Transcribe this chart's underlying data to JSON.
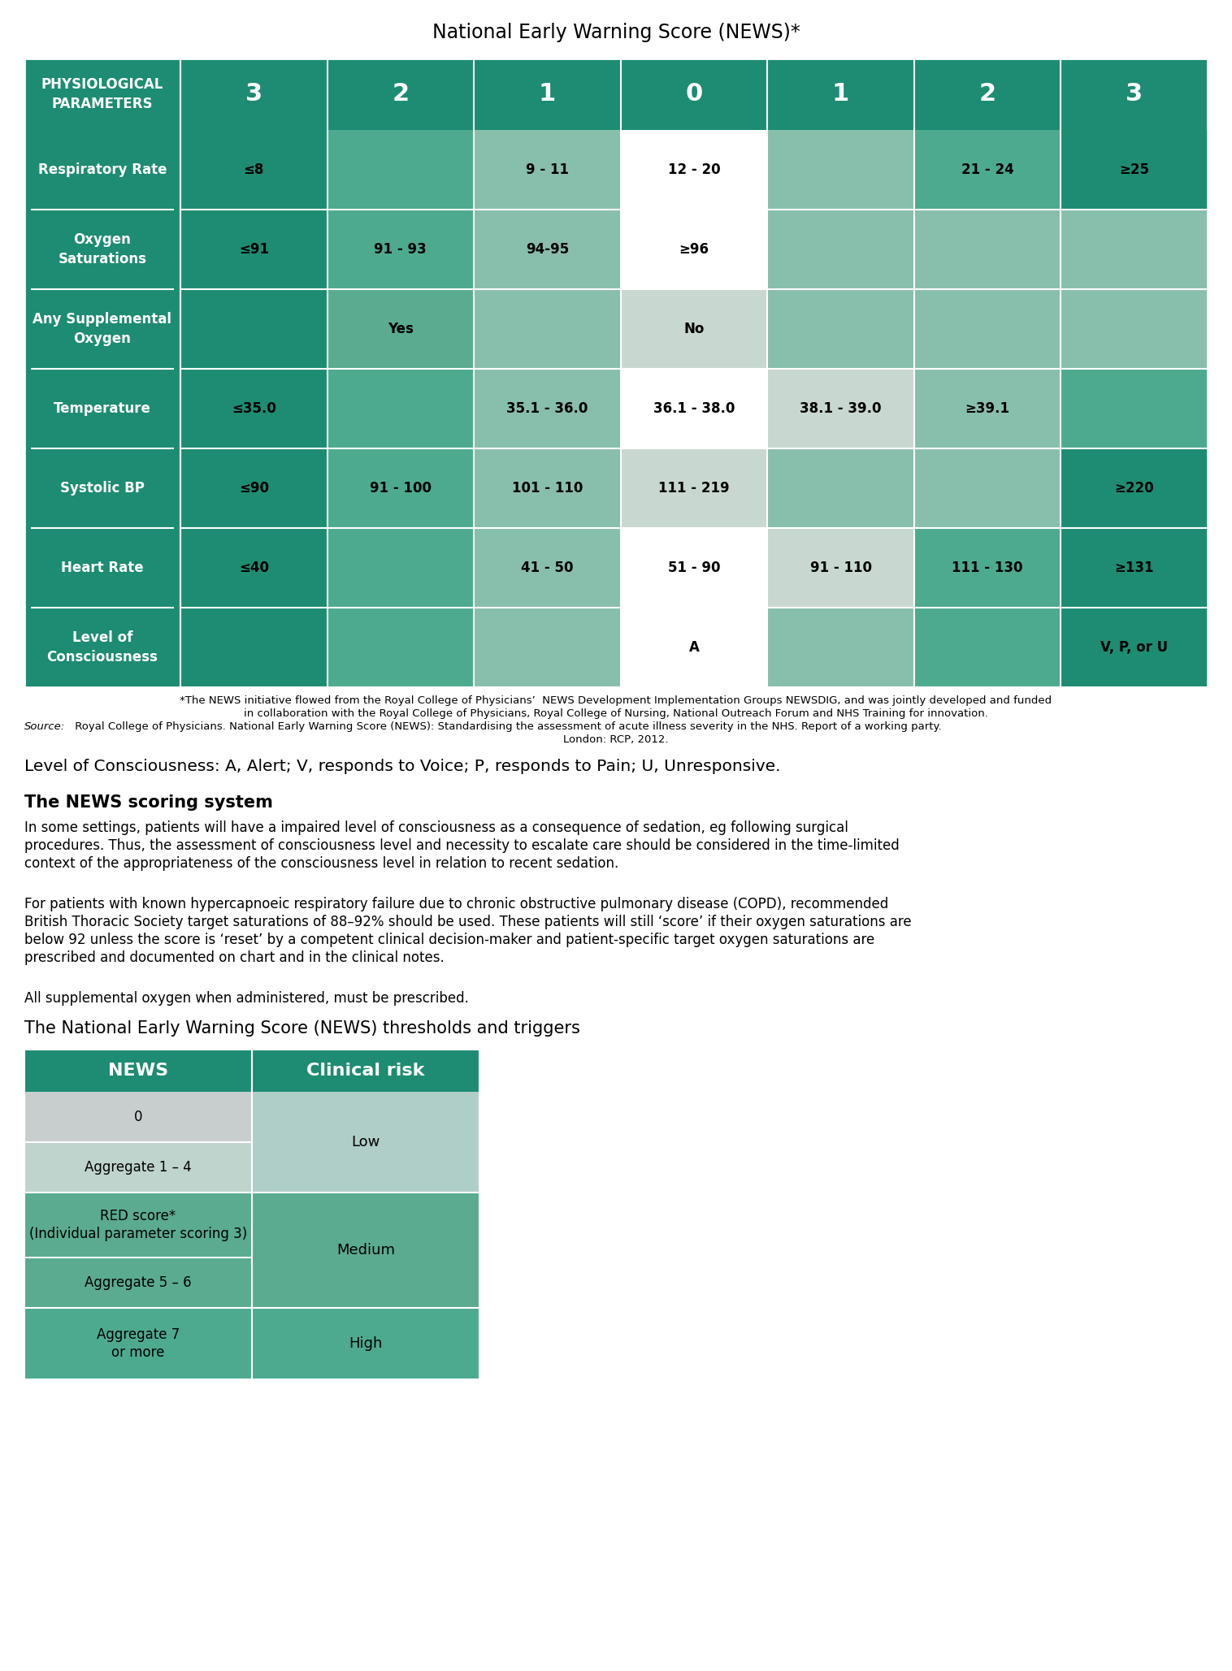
{
  "title": "National Early Warning Score (NEWS)*",
  "table_header_bg": "#1d8c72",
  "row_label_bg": "#1d8c72",
  "col_headers": [
    "PHYSIOLOGICAL\nPARAMETERS",
    "3",
    "2",
    "1",
    "0",
    "1",
    "2",
    "3"
  ],
  "rows": [
    {
      "label": "Respiratory Rate",
      "cells": [
        "≤8",
        "",
        "9 - 11",
        "12 - 20",
        "",
        "21 - 24",
        "≥25"
      ],
      "colors": [
        "score3",
        "score2",
        "score1",
        "score0_white",
        "score1",
        "score2",
        "score3"
      ]
    },
    {
      "label": "Oxygen\nSaturations",
      "cells": [
        "≤91",
        "91 - 93",
        "94-95",
        "≥96",
        "",
        "",
        ""
      ],
      "colors": [
        "score3",
        "score2",
        "score1",
        "score0_white",
        "score1_light",
        "score1_light",
        "score1_light"
      ]
    },
    {
      "label": "Any Supplemental\nOxygen",
      "cells": [
        "",
        "Yes",
        "",
        "No",
        "",
        "",
        ""
      ],
      "colors": [
        "score3",
        "score2_med",
        "score1",
        "score0_gray",
        "score1_light",
        "score1_light",
        "score1_light"
      ]
    },
    {
      "label": "Temperature",
      "cells": [
        "≤35.0",
        "",
        "35.1 - 36.0",
        "36.1 - 38.0",
        "38.1 - 39.0",
        "≥39.1",
        ""
      ],
      "colors": [
        "score3",
        "score2",
        "score1",
        "score0_white",
        "score0_gray",
        "score1",
        "score2"
      ]
    },
    {
      "label": "Systolic BP",
      "cells": [
        "≤90",
        "91 - 100",
        "101 - 110",
        "111 - 219",
        "",
        "",
        "≥220"
      ],
      "colors": [
        "score3",
        "score2",
        "score1",
        "score0_gray",
        "score1_light",
        "score1_light",
        "score3"
      ]
    },
    {
      "label": "Heart Rate",
      "cells": [
        "≤40",
        "",
        "41 - 50",
        "51 - 90",
        "91 - 110",
        "111 - 130",
        "≥131"
      ],
      "colors": [
        "score3",
        "score2",
        "score1",
        "score0_white",
        "score0_gray",
        "score2",
        "score3"
      ]
    },
    {
      "label": "Level of\nConsciousness",
      "cells": [
        "",
        "",
        "",
        "A",
        "",
        "",
        "V, P, or U"
      ],
      "colors": [
        "score3",
        "score2",
        "score1",
        "score0_white",
        "score1_light",
        "score2",
        "score3"
      ]
    }
  ],
  "color_map": {
    "score3": "#1d8c72",
    "score2": "#4daa8f",
    "score2_med": "#5aab90",
    "score1": "#88bfac",
    "score1_light": "#88bfac",
    "score0_white": "#ffffff",
    "score0_gray": "#c8d8d0",
    "score0_light": "#d8e8e0"
  },
  "footnote1": "*The NEWS initiative flowed from the Royal College of Physicians’  NEWS Development Implementation Groups NEWSDIG, and was jointly developed and funded",
  "footnote2": "in collaboration with the Royal College of Physicians, Royal College of Nursing, National Outreach Forum and NHS Training for innovation.",
  "footnote3_prefix": "Source:",
  "footnote3_body": " Royal College of Physicians. National Early Warning Score (NEWS): Standardising the assessment of acute illness severity in the NHS. Report of a working party.",
  "footnote4": "London: RCP, 2012.",
  "loc_text": "Level of Consciousness: A, Alert; V, responds to Voice; P, responds to Pain; U, Unresponsive.",
  "scoring_title": "The NEWS scoring system",
  "scoring_para1_lines": [
    "In some settings, patients will have a impaired level of consciousness as a consequence of sedation, eg following surgical",
    "procedures. Thus, the assessment of consciousness level and necessity to escalate care should be considered in the time-limited",
    "context of the appropriateness of the consciousness level in relation to recent sedation."
  ],
  "scoring_para2_lines": [
    "For patients with known hypercapnoeic respiratory failure due to chronic obstructive pulmonary disease (COPD), recommended",
    "British Thoracic Society target saturations of 88–92% should be used. These patients will still ‘score’ if their oxygen saturations are",
    "below 92 unless the score is ‘reset’ by a competent clinical decision-maker and patient-specific target oxygen saturations are",
    "prescribed and documented on chart and in the clinical notes."
  ],
  "scoring_para3": "All supplemental oxygen when administered, must be prescribed.",
  "table2_title": "The National Early Warning Score (NEWS) thresholds and triggers",
  "table2_header_bg": "#1d8c72",
  "table2_col1": "NEWS",
  "table2_col2": "Clinical risk",
  "table2_news_items": [
    "0",
    "Aggregate 1 – 4",
    "RED score*\n(Individual parameter scoring 3)",
    "Aggregate 5 – 6",
    "Aggregate 7\nor more"
  ],
  "table2_row_heights": [
    62,
    62,
    80,
    62,
    88
  ],
  "table2_news_colors": [
    "#c8cece",
    "#c0d4ce",
    "#5aab90",
    "#5aab90",
    "#4daa8f"
  ],
  "table2_risk_groups": [
    {
      "label": "Low",
      "rows": [
        0,
        1
      ],
      "bg": "#b0cec8"
    },
    {
      "label": "Medium",
      "rows": [
        2,
        3
      ],
      "bg": "#4daa8f"
    },
    {
      "label": "High",
      "rows": [
        4,
        4
      ],
      "bg": "#4daa8f"
    }
  ],
  "table2_risk_colors": [
    "#b0cec8",
    "#5aab90",
    "#4daa8f"
  ]
}
